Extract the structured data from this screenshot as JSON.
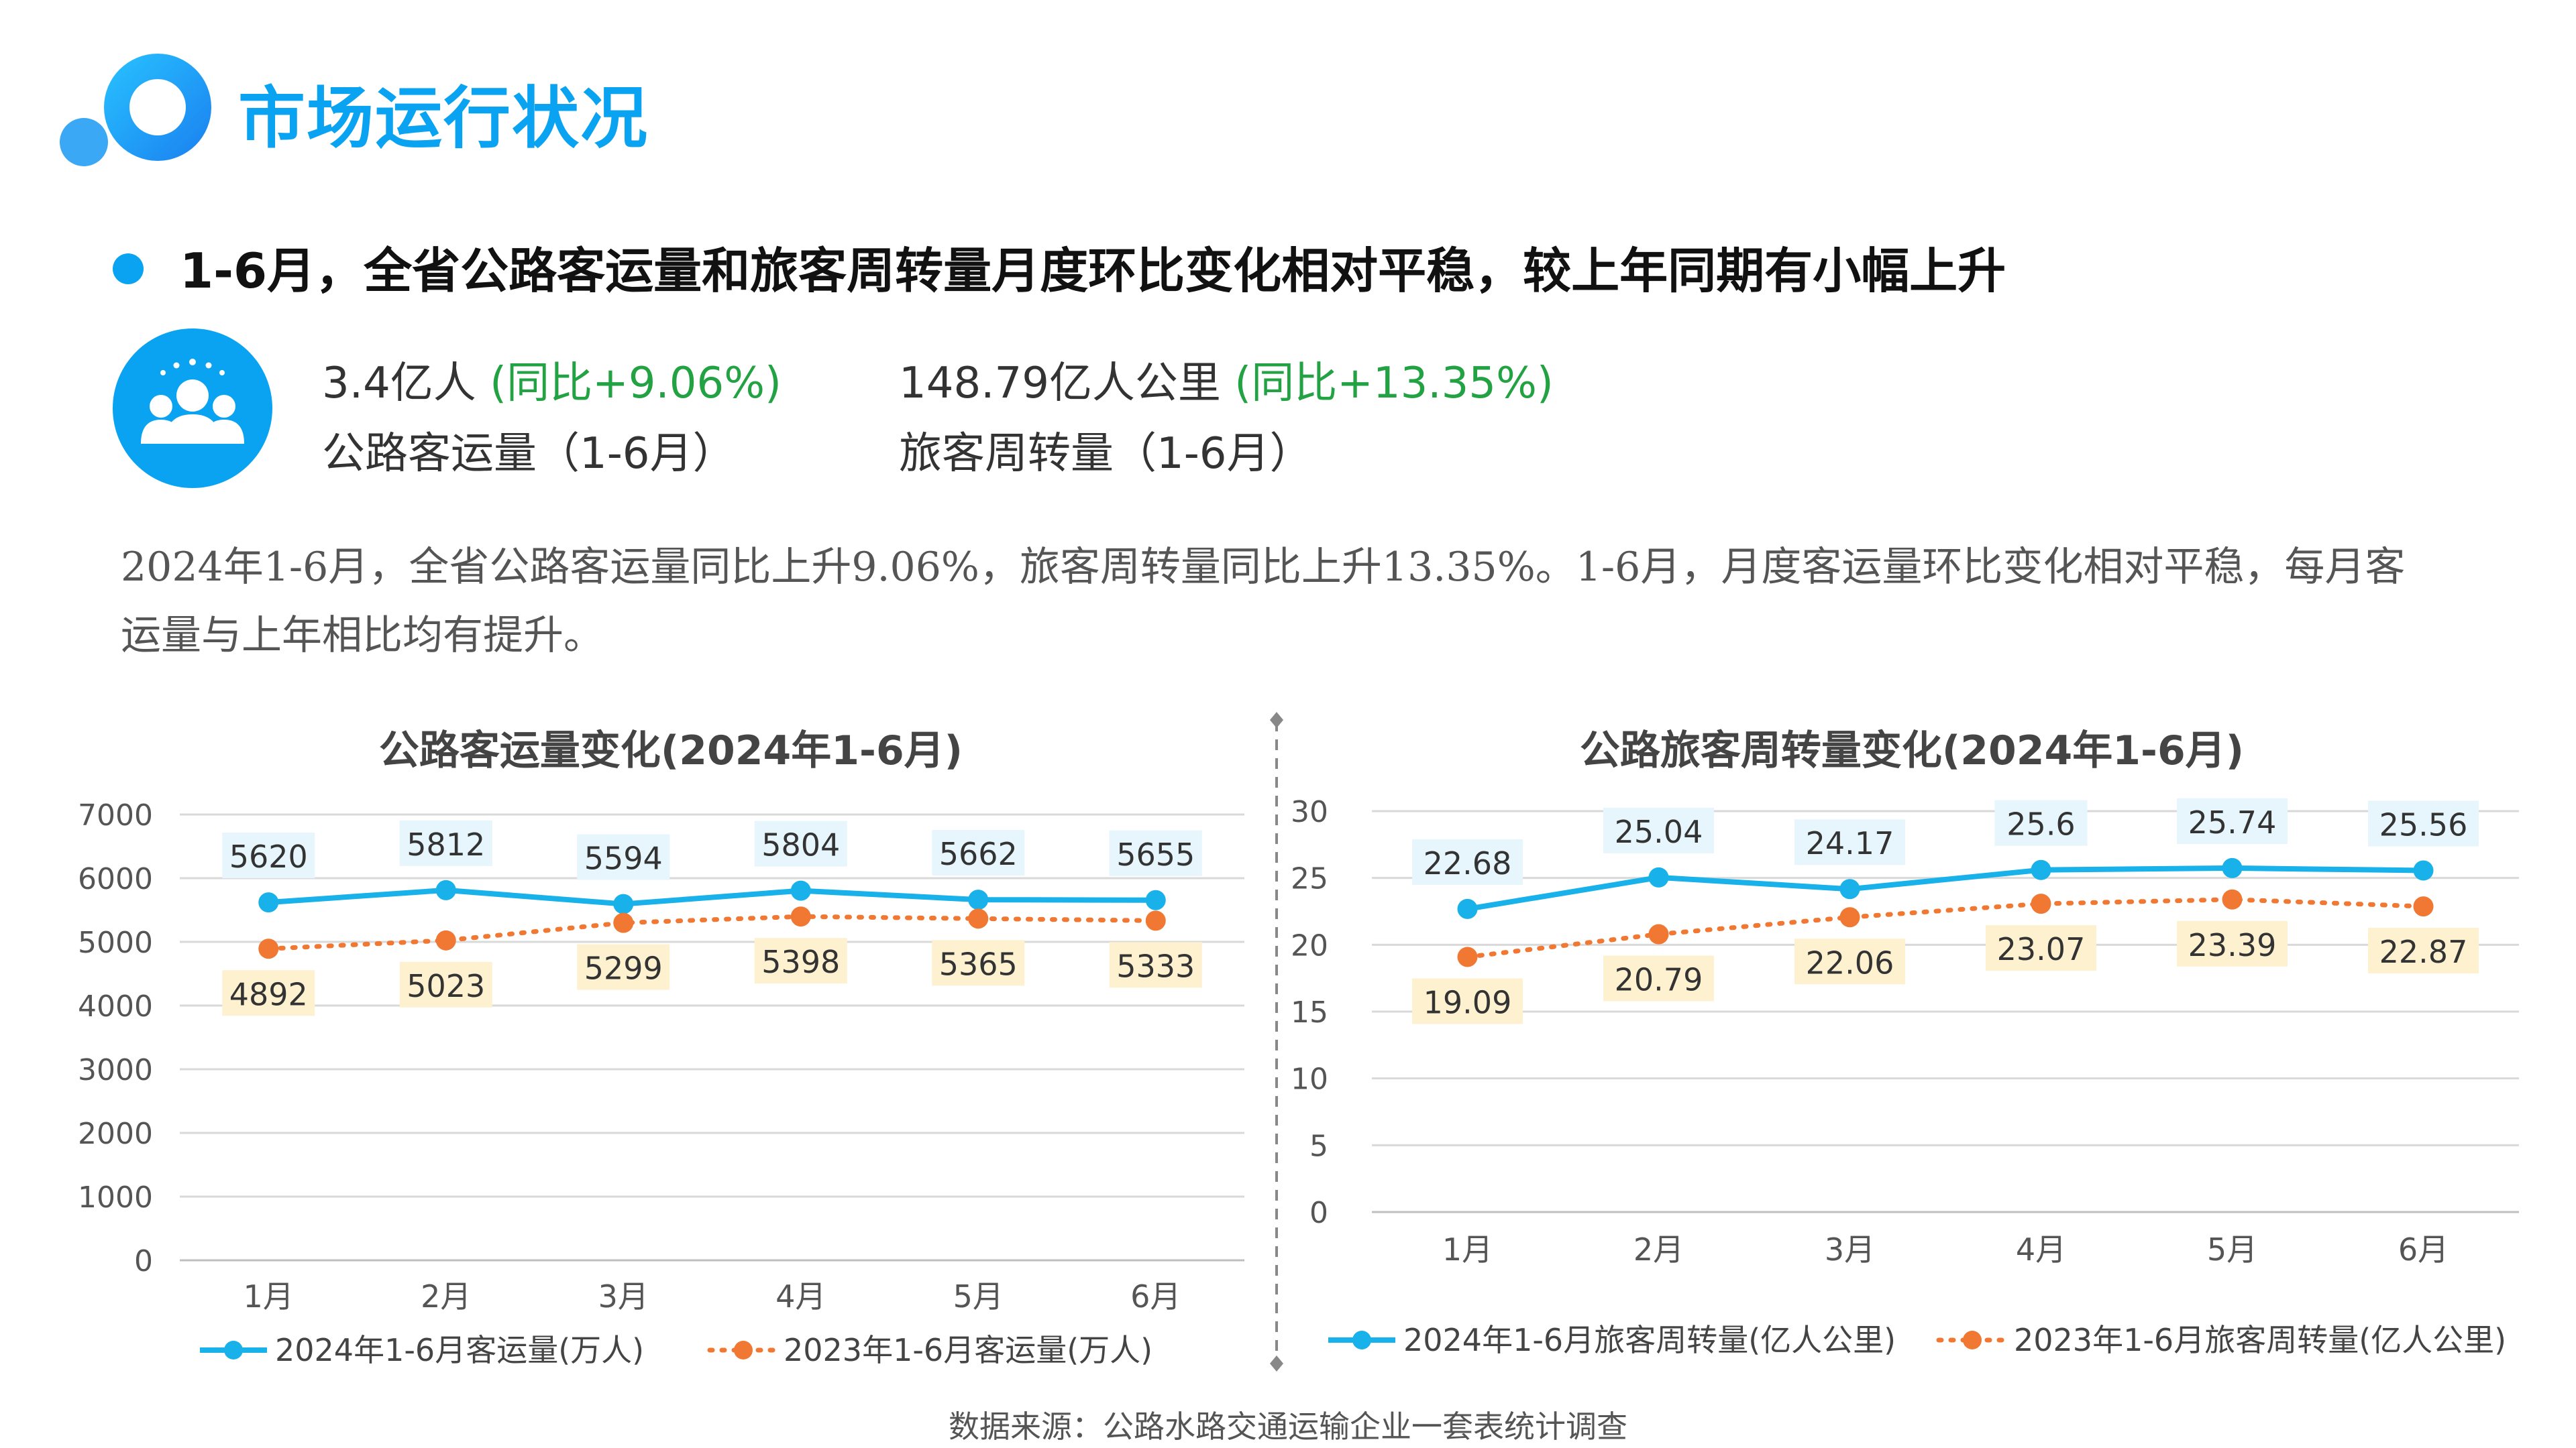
{
  "page": {
    "title": "市场运行状况",
    "headline": "1-6月，全省公路客运量和旅客周转量月度环比变化相对平稳，较上年同期有小幅上升",
    "stats": [
      {
        "value": "3.4亿人",
        "change": "(同比+9.06%)",
        "label": "公路客运量（1-6月）"
      },
      {
        "value": "148.79亿人公里",
        "change": "(同比+13.35%)",
        "label": "旅客周转量（1-6月）"
      }
    ],
    "body": "2024年1-6月，全省公路客运量同比上升9.06%，旅客周转量同比上升13.35%。1-6月，月度客运量环比变化相对平稳，每月客运量与上年相比均有提升。",
    "source": "数据来源：公路水路交通运输企业一套表统计调查",
    "icons": [
      "logo-circles-icon",
      "people-group-icon"
    ],
    "colors": {
      "accent": "#0aa3f2",
      "series_2024": "#18b1ea",
      "series_2023": "#f07832",
      "label_2024_bg": "#e6f6fc",
      "label_2023_bg": "#fdf1cf",
      "green": "#23a244"
    }
  },
  "chart_data": [
    {
      "type": "line",
      "title": "公路客运量变化(2024年1-6月)",
      "categories": [
        "1月",
        "2月",
        "3月",
        "4月",
        "5月",
        "6月"
      ],
      "series": [
        {
          "name": "2024年1-6月客运量(万人)",
          "values": [
            5620,
            5812,
            5594,
            5804,
            5662,
            5655
          ],
          "style": "solid",
          "color": "#18b1ea"
        },
        {
          "name": "2023年1-6月客运量(万人)",
          "values": [
            4892,
            5023,
            5299,
            5398,
            5365,
            5333
          ],
          "style": "dotted",
          "color": "#f07832"
        }
      ],
      "ylim": [
        0,
        7000
      ],
      "yticks": [
        0,
        1000,
        2000,
        3000,
        4000,
        5000,
        6000,
        7000
      ],
      "grid": true,
      "legend": "bottom"
    },
    {
      "type": "line",
      "title": "公路旅客周转量变化(2024年1-6月)",
      "categories": [
        "1月",
        "2月",
        "3月",
        "4月",
        "5月",
        "6月"
      ],
      "series": [
        {
          "name": "2024年1-6月旅客周转量(亿人公里)",
          "values": [
            22.68,
            25.04,
            24.17,
            25.6,
            25.74,
            25.56
          ],
          "style": "solid",
          "color": "#18b1ea"
        },
        {
          "name": "2023年1-6月旅客周转量(亿人公里)",
          "values": [
            19.09,
            20.79,
            22.06,
            23.07,
            23.39,
            22.87
          ],
          "style": "dotted",
          "color": "#f07832"
        }
      ],
      "ylim": [
        0,
        30
      ],
      "yticks": [
        0,
        5,
        10,
        15,
        20,
        25,
        30
      ],
      "grid": true,
      "legend": "bottom"
    }
  ]
}
